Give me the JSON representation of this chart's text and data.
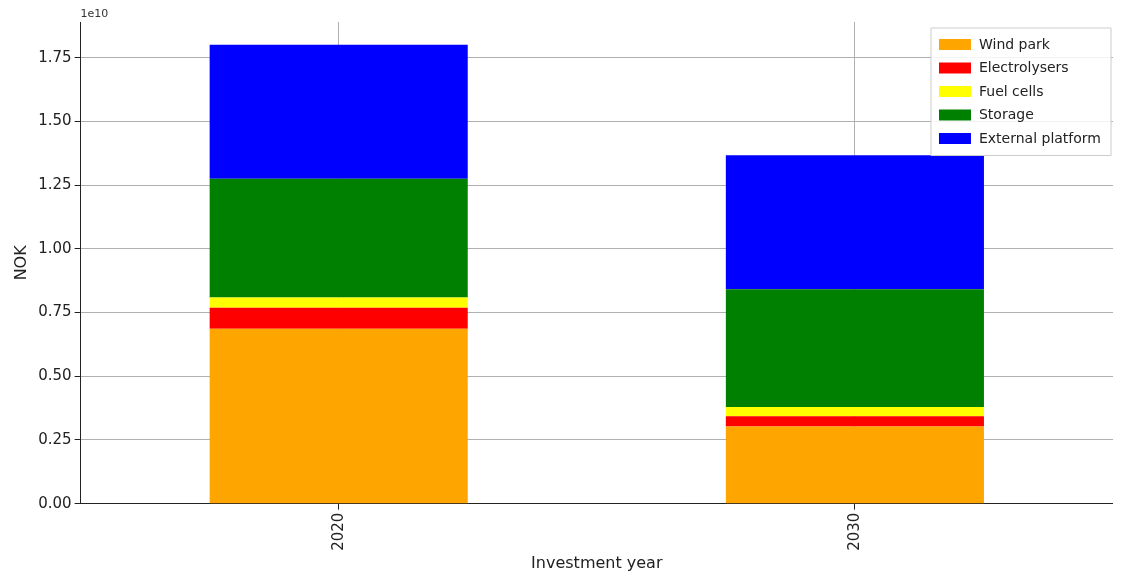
{
  "chart_data": {
    "type": "bar",
    "stacked": true,
    "xlabel": "Investment year",
    "ylabel": "NOK",
    "categories": [
      "2020",
      "2030"
    ],
    "series": [
      {
        "name": "Wind park",
        "color": "#ffa500",
        "values": [
          0.686,
          0.303
        ]
      },
      {
        "name": "Electrolysers",
        "color": "#ff0000",
        "values": [
          0.083,
          0.04
        ]
      },
      {
        "name": "Fuel cells",
        "color": "#ffff00",
        "values": [
          0.04,
          0.036
        ]
      },
      {
        "name": "Storage",
        "color": "#008000",
        "values": [
          0.466,
          0.462
        ]
      },
      {
        "name": "External platform",
        "color": "#0000ff",
        "values": [
          0.526,
          0.526
        ]
      }
    ],
    "ylim": [
      0,
      1.89
    ],
    "yticks": [
      {
        "value": 0,
        "label": "0.00"
      },
      {
        "value": 0.25,
        "label": "0.25"
      },
      {
        "value": 0.5,
        "label": "0.50"
      },
      {
        "value": 0.75,
        "label": "0.75"
      },
      {
        "value": 1,
        "label": "1.00"
      },
      {
        "value": 1.25,
        "label": "1.25"
      },
      {
        "value": 1.5,
        "label": "1.50"
      },
      {
        "value": 1.75,
        "label": "1.75"
      }
    ],
    "annotations": [
      "1e10"
    ],
    "grid": true,
    "legend": "top right"
  }
}
